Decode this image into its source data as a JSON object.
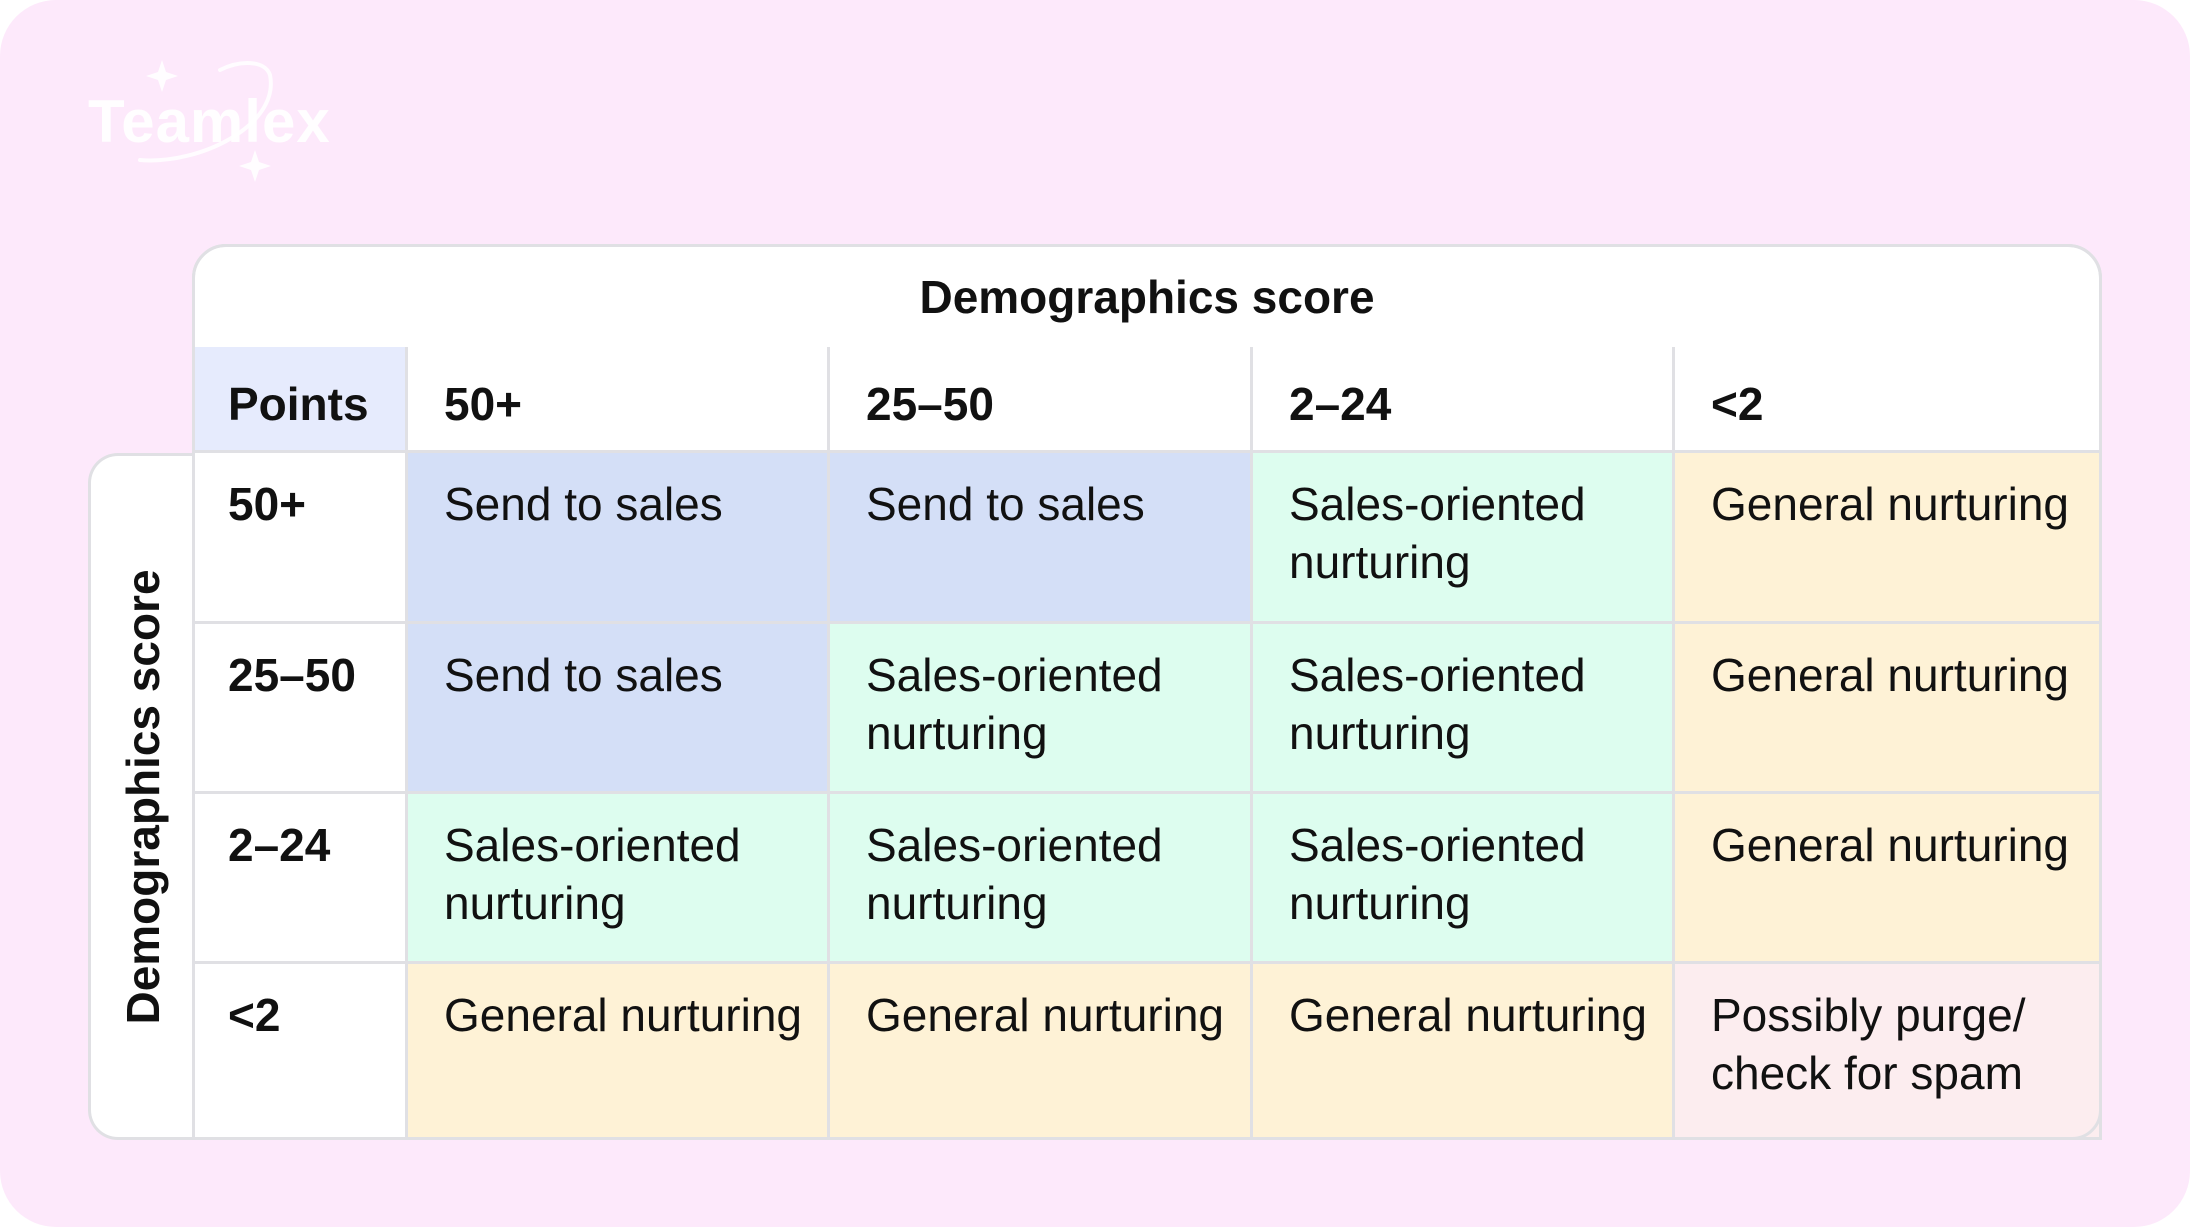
{
  "brand": {
    "logo_text": "Teamlex"
  },
  "matrix": {
    "column_title": "Demographics score",
    "row_title": "Demographics score",
    "corner_label": "Points",
    "columns": [
      "50+",
      "25–50",
      "2–24",
      "<2"
    ],
    "rows": [
      {
        "label": "50+",
        "cells": [
          "Send to sales",
          "Send to sales",
          "Sales-oriented nurturing",
          "General nurturing"
        ]
      },
      {
        "label": "25–50",
        "cells": [
          "Send to sales",
          "Sales-oriented nurturing",
          "Sales-oriented nurturing",
          "General nurturing"
        ]
      },
      {
        "label": "2–24",
        "cells": [
          "Sales-oriented nurturing",
          "Sales-oriented nurturing",
          "Sales-oriented nurturing",
          "General nurturing"
        ]
      },
      {
        "label": "<2",
        "cells": [
          "General nurturing",
          "General nurturing",
          "General nurturing",
          "Possibly purge/ check for spam"
        ]
      }
    ]
  },
  "colors": {
    "background": "#fde9fb",
    "corner": "#e6ebfd",
    "send_to_sales": "#d4dff7",
    "sales_oriented": "#ddfdef",
    "general": "#fef2d6",
    "purge": "#fcedef"
  }
}
